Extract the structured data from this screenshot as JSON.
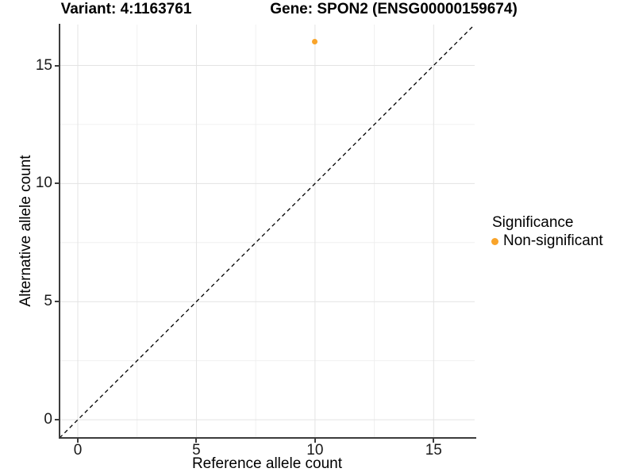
{
  "header": {
    "variant_title": "Variant: 4:1163761",
    "gene_title": "Gene: SPON2 (ENSG00000159674)"
  },
  "legend": {
    "title": "Significance",
    "items": [
      {
        "label": "Non-significant",
        "color": "#F9A42A",
        "marker": "circle-icon"
      }
    ]
  },
  "colors": {
    "non_significant": "#F9A42A",
    "axis_line": "#3C3C3C",
    "grid_major": "#E3E3E3",
    "grid_minor": "#F0F0F0",
    "reference_line": "#000000",
    "text": "#000000"
  },
  "chart_data": {
    "type": "scatter",
    "title": "Variant: 4:1163761   |   Gene: SPON2 (ENSG00000159674)",
    "xlabel": "Reference allele count",
    "ylabel": "Alternative allele count",
    "xlim": [
      -0.77,
      16.73
    ],
    "ylim": [
      -0.77,
      16.73
    ],
    "x_major_ticks": [
      0,
      5,
      10,
      15
    ],
    "y_major_ticks": [
      0,
      5,
      10,
      15
    ],
    "x_minor_gridlines": [
      2.5,
      7.5,
      12.5
    ],
    "y_minor_gridlines": [
      2.5,
      7.5,
      12.5
    ],
    "grid": true,
    "legend_position": "right",
    "series": [
      {
        "name": "Non-significant",
        "color": "#F9A42A",
        "points": [
          {
            "x": 10,
            "y": 16
          }
        ]
      }
    ],
    "reference_line": {
      "kind": "identity y = x",
      "style": "dashed",
      "color": "#000000",
      "x1": -0.77,
      "y1": -0.77,
      "x2": 16.73,
      "y2": 16.73
    }
  }
}
